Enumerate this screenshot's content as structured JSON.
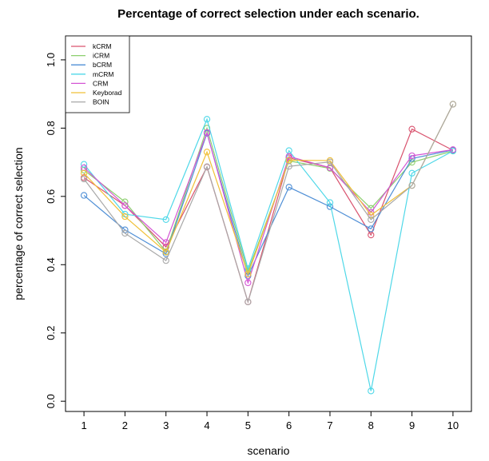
{
  "chart_data": {
    "type": "line",
    "title": "Percentage of correct selection under each scenario.",
    "xlabel": "scenario",
    "ylabel": "percentage of correct selection",
    "x": [
      1,
      2,
      3,
      4,
      5,
      6,
      7,
      8,
      9,
      10
    ],
    "xlim": [
      0.55,
      10.45
    ],
    "ylim": [
      -0.03,
      1.07
    ],
    "yticks": [
      0.0,
      0.2,
      0.4,
      0.6,
      0.8,
      1.0
    ],
    "ytick_labels": [
      "0.0",
      "0.2",
      "0.4",
      "0.6",
      "0.8",
      "1.0"
    ],
    "legend_position": "top-left",
    "grid": false,
    "series": [
      {
        "name": "kCRM",
        "color": "#d9536e",
        "values": [
          0.655,
          0.573,
          0.452,
          0.686,
          0.291,
          0.713,
          0.684,
          0.487,
          0.797,
          0.735
        ]
      },
      {
        "name": "iCRM",
        "color": "#8ccf6e",
        "values": [
          0.677,
          0.584,
          0.438,
          0.8,
          0.38,
          0.704,
          0.682,
          0.565,
          0.7,
          0.733
        ]
      },
      {
        "name": "bCRM",
        "color": "#4f8fd6",
        "values": [
          0.603,
          0.502,
          0.432,
          0.785,
          0.367,
          0.627,
          0.57,
          0.505,
          0.711,
          0.736
        ]
      },
      {
        "name": "mCRM",
        "color": "#4fd8e8",
        "values": [
          0.694,
          0.548,
          0.532,
          0.826,
          0.388,
          0.734,
          0.582,
          0.03,
          0.668,
          0.733
        ]
      },
      {
        "name": "CRM",
        "color": "#d455d4",
        "values": [
          0.684,
          0.573,
          0.465,
          0.787,
          0.347,
          0.717,
          0.684,
          0.553,
          0.719,
          0.737
        ]
      },
      {
        "name": "Keyborad",
        "color": "#f0c038",
        "values": [
          0.668,
          0.541,
          0.437,
          0.73,
          0.372,
          0.706,
          0.705,
          0.545,
          0.632,
          0.87
        ]
      },
      {
        "name": "BOIN",
        "color": "#a8a8a8",
        "values": [
          0.651,
          0.492,
          0.412,
          0.687,
          0.291,
          0.688,
          0.701,
          0.532,
          0.632,
          0.87
        ]
      }
    ]
  }
}
